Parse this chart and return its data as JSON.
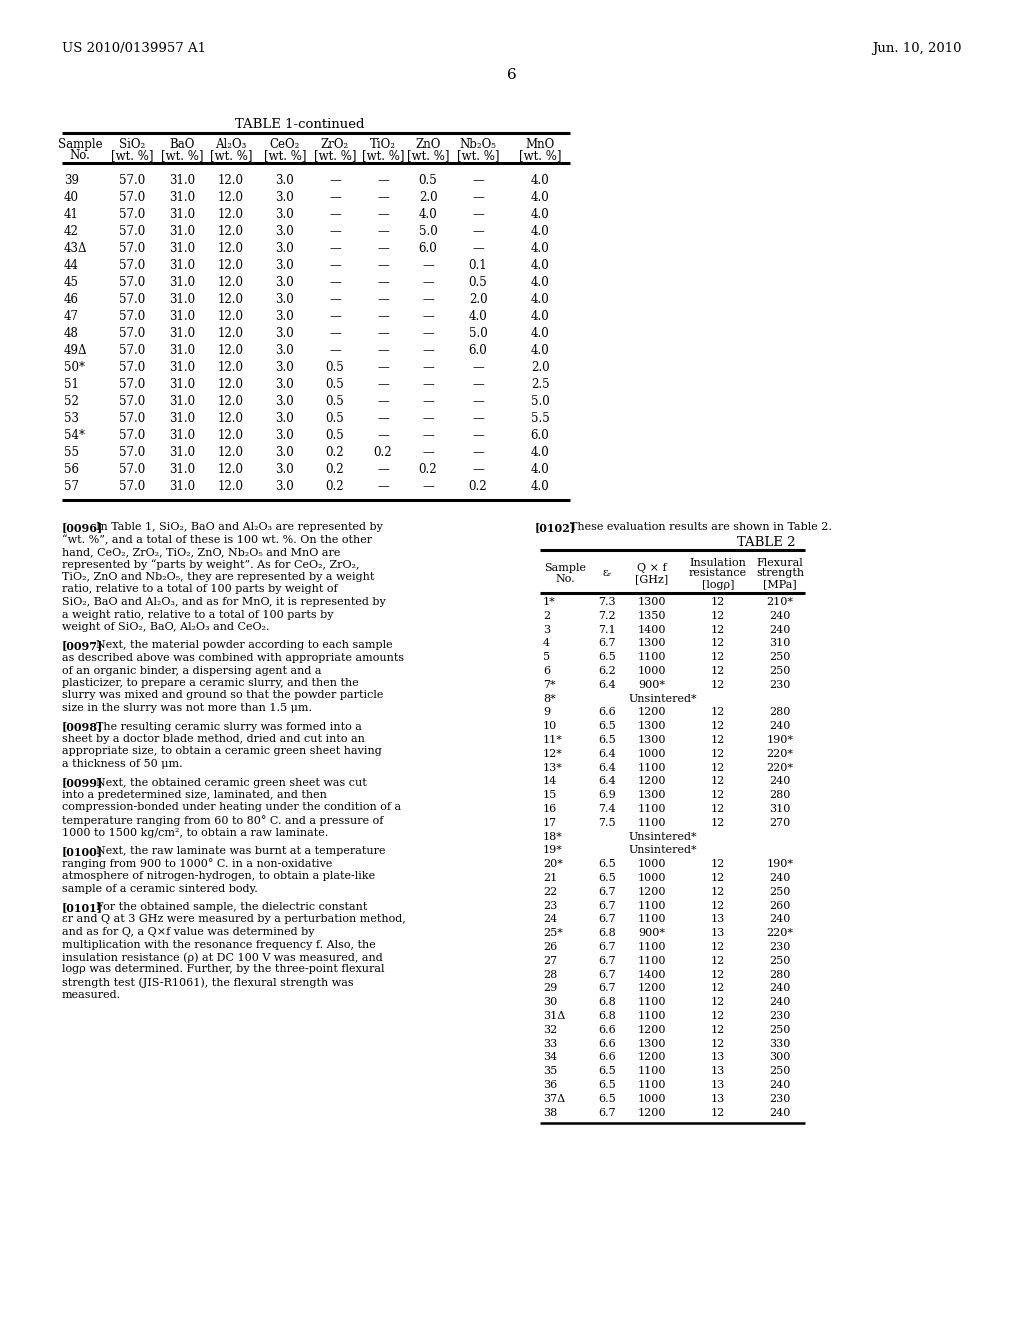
{
  "page_header_left": "US 2010/0139957 A1",
  "page_header_right": "Jun. 10, 2010",
  "page_number": "6",
  "table1_title": "TABLE 1-continued",
  "table1_hdr_top": [
    "Sample",
    "SiO₂",
    "BaO",
    "Al₂O₃",
    "CeO₂",
    "ZrO₂",
    "TiO₂",
    "ZnO",
    "Nb₂O₅",
    "MnO"
  ],
  "table1_hdr_bot": [
    "No.",
    "[wt. %]",
    "[wt. %]",
    "[wt. %]",
    "[wt. %]",
    "[wt. %]",
    "[wt. %]",
    "[wt. %]",
    "[wt. %]",
    "[wt. %]"
  ],
  "table1_rows": [
    [
      "39",
      "57.0",
      "31.0",
      "12.0",
      "3.0",
      "—",
      "—",
      "0.5",
      "—",
      "4.0"
    ],
    [
      "40",
      "57.0",
      "31.0",
      "12.0",
      "3.0",
      "—",
      "—",
      "2.0",
      "—",
      "4.0"
    ],
    [
      "41",
      "57.0",
      "31.0",
      "12.0",
      "3.0",
      "—",
      "—",
      "4.0",
      "—",
      "4.0"
    ],
    [
      "42",
      "57.0",
      "31.0",
      "12.0",
      "3.0",
      "—",
      "—",
      "5.0",
      "—",
      "4.0"
    ],
    [
      "43Δ",
      "57.0",
      "31.0",
      "12.0",
      "3.0",
      "—",
      "—",
      "6.0",
      "—",
      "4.0"
    ],
    [
      "44",
      "57.0",
      "31.0",
      "12.0",
      "3.0",
      "—",
      "—",
      "—",
      "0.1",
      "4.0"
    ],
    [
      "45",
      "57.0",
      "31.0",
      "12.0",
      "3.0",
      "—",
      "—",
      "—",
      "0.5",
      "4.0"
    ],
    [
      "46",
      "57.0",
      "31.0",
      "12.0",
      "3.0",
      "—",
      "—",
      "—",
      "2.0",
      "4.0"
    ],
    [
      "47",
      "57.0",
      "31.0",
      "12.0",
      "3.0",
      "—",
      "—",
      "—",
      "4.0",
      "4.0"
    ],
    [
      "48",
      "57.0",
      "31.0",
      "12.0",
      "3.0",
      "—",
      "—",
      "—",
      "5.0",
      "4.0"
    ],
    [
      "49Δ",
      "57.0",
      "31.0",
      "12.0",
      "3.0",
      "—",
      "—",
      "—",
      "6.0",
      "4.0"
    ],
    [
      "50*",
      "57.0",
      "31.0",
      "12.0",
      "3.0",
      "0.5",
      "—",
      "—",
      "—",
      "2.0"
    ],
    [
      "51",
      "57.0",
      "31.0",
      "12.0",
      "3.0",
      "0.5",
      "—",
      "—",
      "—",
      "2.5"
    ],
    [
      "52",
      "57.0",
      "31.0",
      "12.0",
      "3.0",
      "0.5",
      "—",
      "—",
      "—",
      "5.0"
    ],
    [
      "53",
      "57.0",
      "31.0",
      "12.0",
      "3.0",
      "0.5",
      "—",
      "—",
      "—",
      "5.5"
    ],
    [
      "54*",
      "57.0",
      "31.0",
      "12.0",
      "3.0",
      "0.5",
      "—",
      "—",
      "—",
      "6.0"
    ],
    [
      "55",
      "57.0",
      "31.0",
      "12.0",
      "3.0",
      "0.2",
      "0.2",
      "—",
      "—",
      "4.0"
    ],
    [
      "56",
      "57.0",
      "31.0",
      "12.0",
      "3.0",
      "0.2",
      "—",
      "0.2",
      "—",
      "4.0"
    ],
    [
      "57",
      "57.0",
      "31.0",
      "12.0",
      "3.0",
      "0.2",
      "—",
      "—",
      "0.2",
      "4.0"
    ]
  ],
  "para_left": [
    {
      "tag": "[0096]",
      "text": "In Table 1, SiO₂, BaO and Al₂O₃ are represented by “wt. %”, and a total of these is 100 wt. %. On the other hand, CeO₂, ZrO₂, TiO₂, ZnO, Nb₂O₅ and MnO are represented by “parts by weight”. As for CeO₂, ZrO₂, TiO₂, ZnO and Nb₂O₅, they are represented by a weight ratio, relative to a total of 100 parts by weight of SiO₂, BaO and Al₂O₃, and as for MnO, it is represented by a weight ratio, relative to a total of 100 parts by weight of SiO₂, BaO, Al₂O₃ and CeO₂."
    },
    {
      "tag": "[0097]",
      "text": "Next, the material powder according to each sample as described above was combined with appropriate amounts of an organic binder, a dispersing agent and a plasticizer, to prepare a ceramic slurry, and then the slurry was mixed and ground so that the powder particle size in the slurry was not more than 1.5 μm."
    },
    {
      "tag": "[0098]",
      "text": "The resulting ceramic slurry was formed into a sheet by a doctor blade method, dried and cut into an appropriate size, to obtain a ceramic green sheet having a thickness of 50 μm."
    },
    {
      "tag": "[0099]",
      "text": "Next, the obtained ceramic green sheet was cut into a predetermined size, laminated, and then compression-bonded under heating under the condition of a temperature ranging from 60 to 80° C. and a pressure of 1000 to 1500 kg/cm², to obtain a raw laminate."
    },
    {
      "tag": "[0100]",
      "text": "Next, the raw laminate was burnt at a temperature ranging from 900 to 1000° C. in a non-oxidative atmosphere of nitrogen-hydrogen, to obtain a plate-like sample of a ceramic sintered body."
    },
    {
      "tag": "[0101]",
      "text": "For the obtained sample, the dielectric constant εr and Q at 3 GHz were measured by a perturbation method, and as for Q, a Q×f value was determined by multiplication with the resonance frequency f. Also, the insulation resistance (ρ) at DC 100 V was measured, and logρ was determined. Further, by the three-point flexural strength test (JIS-R1061), the flexural strength was measured."
    }
  ],
  "para_right_tag": "[0102]",
  "para_right_text": "These evaluation results are shown in Table 2.",
  "table2_title": "TABLE 2",
  "table2_hdr": [
    [
      "Sample",
      "No."
    ],
    [
      "εᵣ",
      ""
    ],
    [
      "Q × f",
      "[GHz]"
    ],
    [
      "Insulation",
      "resistance",
      "[logρ]"
    ],
    [
      "Flexural",
      "strength",
      "[MPa]"
    ]
  ],
  "table2_rows": [
    [
      "1*",
      "7.3",
      "1300",
      "12",
      "210*"
    ],
    [
      "2",
      "7.2",
      "1350",
      "12",
      "240"
    ],
    [
      "3",
      "7.1",
      "1400",
      "12",
      "240"
    ],
    [
      "4",
      "6.7",
      "1300",
      "12",
      "310"
    ],
    [
      "5",
      "6.5",
      "1100",
      "12",
      "250"
    ],
    [
      "6",
      "6.2",
      "1000",
      "12",
      "250"
    ],
    [
      "7*",
      "6.4",
      "900*",
      "12",
      "230"
    ],
    [
      "8*",
      "",
      "",
      "Unsintered*",
      ""
    ],
    [
      "9",
      "6.6",
      "1200",
      "12",
      "280"
    ],
    [
      "10",
      "6.5",
      "1300",
      "12",
      "240"
    ],
    [
      "11*",
      "6.5",
      "1300",
      "12",
      "190*"
    ],
    [
      "12*",
      "6.4",
      "1000",
      "12",
      "220*"
    ],
    [
      "13*",
      "6.4",
      "1100",
      "12",
      "220*"
    ],
    [
      "14",
      "6.4",
      "1200",
      "12",
      "240"
    ],
    [
      "15",
      "6.9",
      "1300",
      "12",
      "280"
    ],
    [
      "16",
      "7.4",
      "1100",
      "12",
      "310"
    ],
    [
      "17",
      "7.5",
      "1100",
      "12",
      "270"
    ],
    [
      "18*",
      "",
      "",
      "Unsintered*",
      ""
    ],
    [
      "19*",
      "",
      "",
      "Unsintered*",
      ""
    ],
    [
      "20*",
      "6.5",
      "1000",
      "12",
      "190*"
    ],
    [
      "21",
      "6.5",
      "1000",
      "12",
      "240"
    ],
    [
      "22",
      "6.7",
      "1200",
      "12",
      "250"
    ],
    [
      "23",
      "6.7",
      "1100",
      "12",
      "260"
    ],
    [
      "24",
      "6.7",
      "1100",
      "13",
      "240"
    ],
    [
      "25*",
      "6.8",
      "900*",
      "13",
      "220*"
    ],
    [
      "26",
      "6.7",
      "1100",
      "12",
      "230"
    ],
    [
      "27",
      "6.7",
      "1100",
      "12",
      "250"
    ],
    [
      "28",
      "6.7",
      "1400",
      "12",
      "280"
    ],
    [
      "29",
      "6.7",
      "1200",
      "12",
      "240"
    ],
    [
      "30",
      "6.8",
      "1100",
      "12",
      "240"
    ],
    [
      "31Δ",
      "6.8",
      "1100",
      "12",
      "230"
    ],
    [
      "32",
      "6.6",
      "1200",
      "12",
      "250"
    ],
    [
      "33",
      "6.6",
      "1300",
      "12",
      "330"
    ],
    [
      "34",
      "6.6",
      "1200",
      "13",
      "300"
    ],
    [
      "35",
      "6.5",
      "1100",
      "13",
      "250"
    ],
    [
      "36",
      "6.5",
      "1100",
      "13",
      "240"
    ],
    [
      "37Δ",
      "6.5",
      "1000",
      "13",
      "230"
    ],
    [
      "38",
      "6.7",
      "1200",
      "12",
      "240"
    ]
  ]
}
